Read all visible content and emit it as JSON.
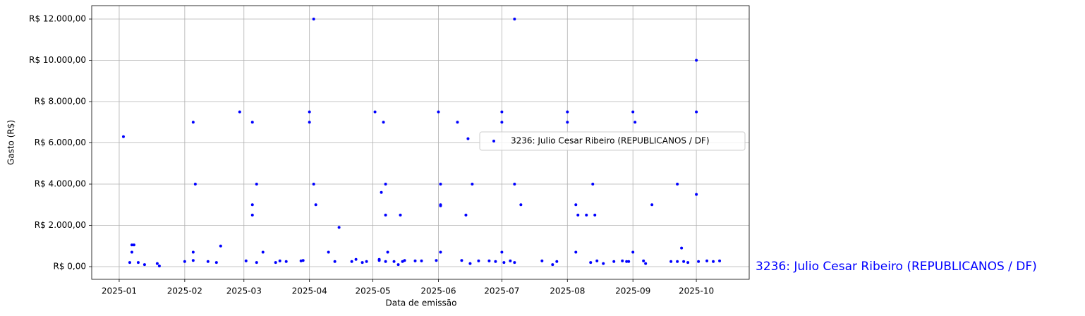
{
  "chart_data": {
    "type": "scatter",
    "xlabel": "Data de emissão",
    "ylabel": "Gasto (R$)",
    "annotation": "3236: Julio Cesar Ribeiro (REPUBLICANOS / DF)",
    "grid": true,
    "legend": "center right",
    "xlim": [
      -13,
      298
    ],
    "ylim": [
      -615,
      12650
    ],
    "xticks": [
      {
        "value": 0,
        "label": "2025-01"
      },
      {
        "value": 31,
        "label": "2025-02"
      },
      {
        "value": 59,
        "label": "2025-03"
      },
      {
        "value": 90,
        "label": "2025-04"
      },
      {
        "value": 120,
        "label": "2025-05"
      },
      {
        "value": 151,
        "label": "2025-06"
      },
      {
        "value": 181,
        "label": "2025-07"
      },
      {
        "value": 212,
        "label": "2025-08"
      },
      {
        "value": 243,
        "label": "2025-09"
      },
      {
        "value": 273,
        "label": "2025-10"
      }
    ],
    "yticks": [
      {
        "value": 0,
        "label": "R$ 0,00"
      },
      {
        "value": 2000,
        "label": "R$ 2.000,00"
      },
      {
        "value": 4000,
        "label": "R$ 4.000,00"
      },
      {
        "value": 6000,
        "label": "R$ 6.000,00"
      },
      {
        "value": 8000,
        "label": "R$ 8.000,00"
      },
      {
        "value": 10000,
        "label": "R$ 10.000,00"
      },
      {
        "value": 12000,
        "label": "R$ 12.000,00"
      }
    ],
    "x": [
      2,
      5,
      6,
      6,
      7,
      9,
      12,
      18,
      19,
      31,
      35,
      35,
      35,
      36,
      42,
      46,
      48,
      57,
      60,
      63,
      63,
      63,
      65,
      65,
      68,
      74,
      76,
      79,
      86,
      87,
      90,
      90,
      92,
      92,
      93,
      99,
      102,
      104,
      110,
      112,
      115,
      117,
      121,
      123,
      123,
      124,
      125,
      126,
      126,
      126,
      127,
      130,
      132,
      133,
      134,
      135,
      140,
      143,
      150,
      151,
      152,
      152,
      152,
      152,
      160,
      162,
      164,
      165,
      166,
      167,
      170,
      175,
      178,
      181,
      181,
      181,
      182,
      185,
      187,
      187,
      187,
      190,
      200,
      205,
      207,
      212,
      212,
      216,
      216,
      217,
      221,
      223,
      224,
      225,
      226,
      229,
      234,
      238,
      240,
      241,
      243,
      244,
      243,
      248,
      249,
      252,
      261,
      264,
      264,
      266,
      267,
      269,
      273,
      273,
      273,
      274,
      278,
      281,
      284
    ],
    "series": [
      {
        "name": "3236: Julio Cesar Ribeiro (REPUBLICANOS / DF)",
        "color": "#0000ff",
        "values": [
          6300,
          200,
          700,
          1050,
          1050,
          200,
          100,
          150,
          30,
          250,
          7000,
          700,
          300,
          4000,
          250,
          200,
          1000,
          7500,
          280,
          7000,
          3000,
          2500,
          4000,
          200,
          700,
          200,
          280,
          250,
          280,
          300,
          7500,
          7000,
          12000,
          4000,
          3000,
          700,
          250,
          1900,
          250,
          350,
          200,
          250,
          7500,
          350,
          300,
          3600,
          7000,
          2500,
          4000,
          250,
          700,
          250,
          100,
          2500,
          250,
          300,
          280,
          280,
          300,
          7500,
          4000,
          3000,
          2950,
          700,
          7000,
          300,
          2500,
          6200,
          150,
          4000,
          280,
          280,
          250,
          7500,
          7000,
          700,
          200,
          280,
          200,
          12000,
          4000,
          3000,
          280,
          100,
          250,
          7500,
          7000,
          3000,
          700,
          2500,
          2500,
          200,
          4000,
          2500,
          280,
          150,
          250,
          280,
          250,
          250,
          7500,
          7000,
          700,
          280,
          150,
          3000,
          250,
          250,
          4000,
          900,
          250,
          200,
          10000,
          7500,
          3500,
          250,
          280,
          250,
          280
        ]
      }
    ]
  }
}
